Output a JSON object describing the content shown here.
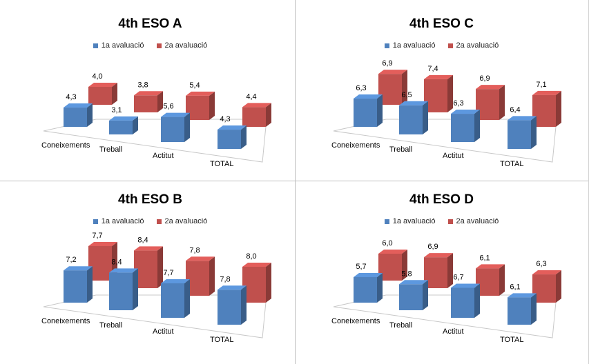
{
  "chart_data": [
    {
      "type": "bar",
      "title": "4th ESO A",
      "categories": [
        "Coneixements",
        "Treball",
        "Actitut",
        "TOTAL"
      ],
      "series": [
        {
          "name": "1a avaluació",
          "values": [
            4.3,
            3.1,
            5.6,
            4.3
          ]
        },
        {
          "name": "2a avaluació",
          "values": [
            4.0,
            3.8,
            5.4,
            4.4
          ]
        }
      ],
      "value_labels": {
        "s1": [
          "4,3",
          "3,1",
          "5,6",
          "4,3"
        ],
        "s2": [
          "4,0",
          "3,8",
          "5,4",
          "4,4"
        ]
      },
      "legend": "top",
      "grid": false
    },
    {
      "type": "bar",
      "title": "4th ESO C",
      "categories": [
        "Coneixements",
        "Treball",
        "Actitut",
        "TOTAL"
      ],
      "series": [
        {
          "name": "1a avaluació",
          "values": [
            6.3,
            6.5,
            6.3,
            6.4
          ]
        },
        {
          "name": "2a avaluació",
          "values": [
            6.9,
            7.4,
            6.9,
            7.1
          ]
        }
      ],
      "value_labels": {
        "s1": [
          "6,3",
          "6,5",
          "6,3",
          "6,4"
        ],
        "s2": [
          "6,9",
          "7,4",
          "6,9",
          "7,1"
        ]
      },
      "legend": "top",
      "grid": false
    },
    {
      "type": "bar",
      "title": "4th ESO B",
      "categories": [
        "Coneixements",
        "Treball",
        "Actitut",
        "TOTAL"
      ],
      "series": [
        {
          "name": "1a avaluació",
          "values": [
            7.2,
            8.4,
            7.7,
            7.8
          ]
        },
        {
          "name": "2a avaluació",
          "values": [
            7.7,
            8.4,
            7.8,
            8.0
          ]
        }
      ],
      "value_labels": {
        "s1": [
          "7,2",
          "8,4",
          "7,7",
          "7,8"
        ],
        "s2": [
          "7,7",
          "8,4",
          "7,8",
          "8,0"
        ]
      },
      "legend": "top",
      "grid": false
    },
    {
      "type": "bar",
      "title": "4th ESO D",
      "categories": [
        "Coneixements",
        "Treball",
        "Actitut",
        "TOTAL"
      ],
      "series": [
        {
          "name": "1a avaluació",
          "values": [
            5.7,
            5.8,
            6.7,
            6.1
          ]
        },
        {
          "name": "2a avaluació",
          "values": [
            6.0,
            6.9,
            6.1,
            6.3
          ]
        }
      ],
      "value_labels": {
        "s1": [
          "5,7",
          "5,8",
          "6,7",
          "6,1"
        ],
        "s2": [
          "6,0",
          "6,9",
          "6,1",
          "6,3"
        ]
      },
      "legend": "top",
      "grid": false
    }
  ],
  "colors": {
    "series1": "#4f81bd",
    "series2": "#c0504d"
  }
}
